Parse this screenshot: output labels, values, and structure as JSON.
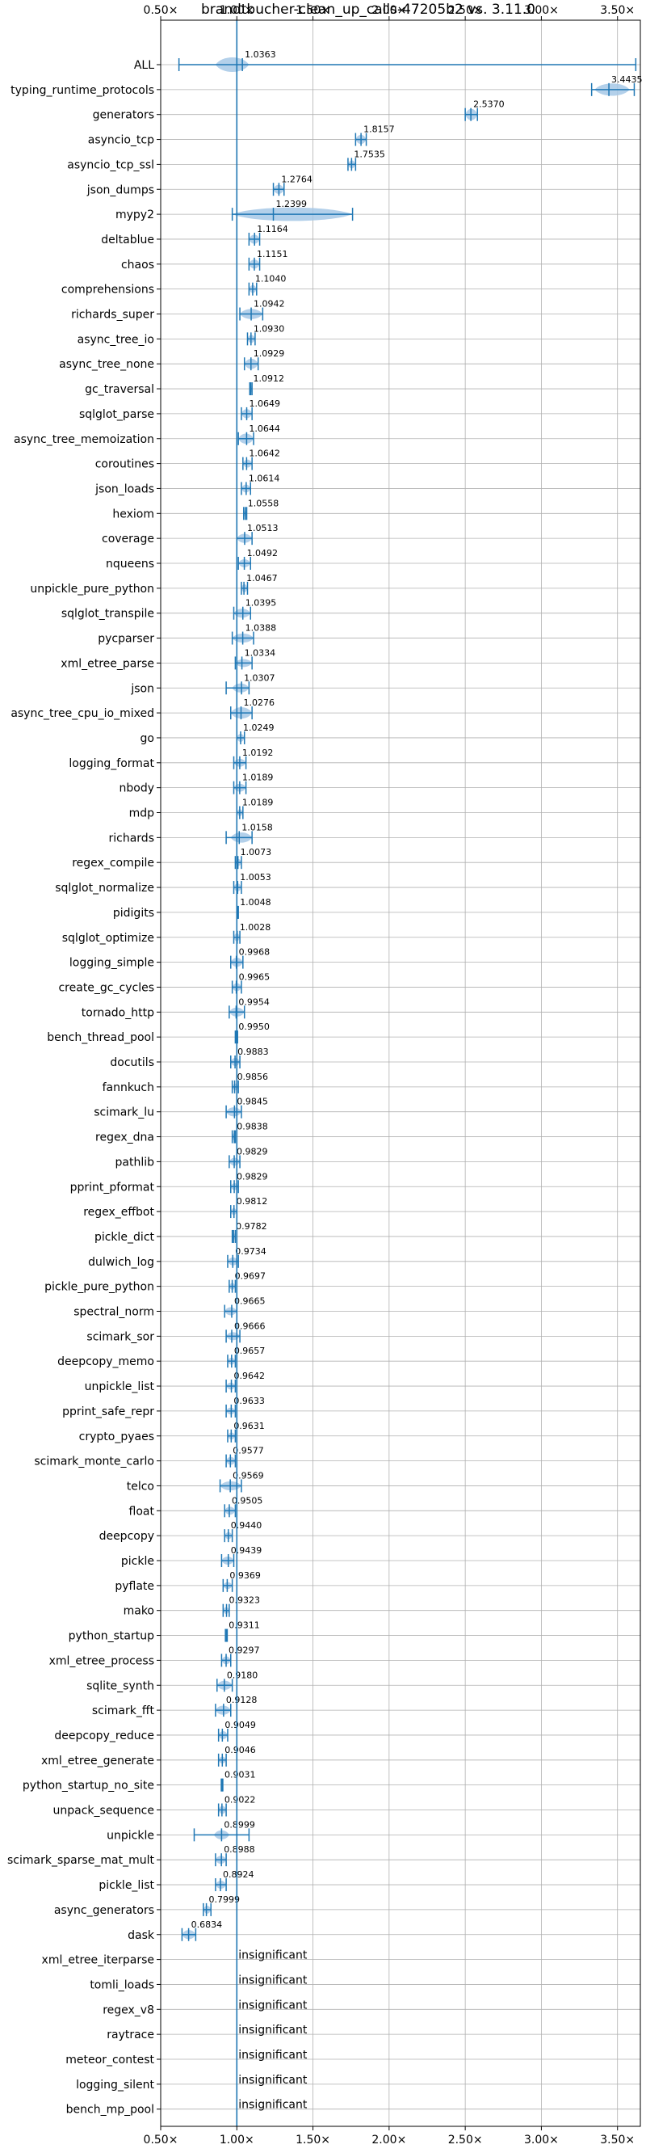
{
  "chart_data": {
    "type": "violin",
    "title": "brandtbucher-clean_up_calls-47205b2 vs. 3.11.0",
    "orientation": "horizontal",
    "xlim": [
      0.5,
      3.65
    ],
    "xticks": [
      0.5,
      1.0,
      1.5,
      2.0,
      2.5,
      3.0,
      3.5
    ],
    "xtick_labels": [
      "0.50×",
      "1.00×",
      "1.50×",
      "2.00×",
      "2.50×",
      "3.00×",
      "3.50×"
    ],
    "ticks_top_and_bottom": true,
    "reference_line": 1.0,
    "grid": true,
    "colors": {
      "violin": "#1f77b4",
      "violin_fill": "#a6c8e6",
      "grid": "#b0b0b0"
    },
    "benchmarks": [
      {
        "name": "ALL",
        "mean": 1.0363,
        "label": "1.0363",
        "min": 0.62,
        "max": 3.62,
        "body_low": 0.86,
        "body_high": 1.08,
        "width": 1.0
      },
      {
        "name": "typing_runtime_protocols",
        "mean": 3.4435,
        "label": "3.4435",
        "min": 3.33,
        "max": 3.61,
        "body_low": 3.35,
        "body_high": 3.58,
        "width": 0.8
      },
      {
        "name": "generators",
        "mean": 2.537,
        "label": "2.5370",
        "min": 2.5,
        "max": 2.58,
        "body_low": 2.5,
        "body_high": 2.58,
        "width": 0.7
      },
      {
        "name": "asyncio_tcp",
        "mean": 1.8157,
        "label": "1.8157",
        "min": 1.78,
        "max": 1.85,
        "body_low": 1.78,
        "body_high": 1.85,
        "width": 0.5
      },
      {
        "name": "asyncio_tcp_ssl",
        "mean": 1.7535,
        "label": "1.7535",
        "min": 1.73,
        "max": 1.78,
        "body_low": 1.73,
        "body_high": 1.78,
        "width": 0.4
      },
      {
        "name": "json_dumps",
        "mean": 1.2764,
        "label": "1.2764",
        "min": 1.24,
        "max": 1.31,
        "body_low": 1.24,
        "body_high": 1.31,
        "width": 0.5
      },
      {
        "name": "mypy2",
        "mean": 1.2399,
        "label": "1.2399",
        "min": 0.97,
        "max": 1.76,
        "body_low": 0.97,
        "body_high": 1.76,
        "width": 0.9
      },
      {
        "name": "deltablue",
        "mean": 1.1164,
        "label": "1.1164",
        "min": 1.08,
        "max": 1.15,
        "body_low": 1.08,
        "body_high": 1.15,
        "width": 0.5
      },
      {
        "name": "chaos",
        "mean": 1.1151,
        "label": "1.1151",
        "min": 1.08,
        "max": 1.15,
        "body_low": 1.08,
        "body_high": 1.15,
        "width": 0.5
      },
      {
        "name": "comprehensions",
        "mean": 1.104,
        "label": "1.1040",
        "min": 1.08,
        "max": 1.13,
        "body_low": 1.08,
        "body_high": 1.13,
        "width": 0.4
      },
      {
        "name": "richards_super",
        "mean": 1.0942,
        "label": "1.0942",
        "min": 1.02,
        "max": 1.17,
        "body_low": 1.02,
        "body_high": 1.17,
        "width": 0.6
      },
      {
        "name": "async_tree_io",
        "mean": 1.093,
        "label": "1.0930",
        "min": 1.07,
        "max": 1.12,
        "body_low": 1.07,
        "body_high": 1.12,
        "width": 0.4
      },
      {
        "name": "async_tree_none",
        "mean": 1.0929,
        "label": "1.0929",
        "min": 1.05,
        "max": 1.14,
        "body_low": 1.05,
        "body_high": 1.14,
        "width": 0.6
      },
      {
        "name": "gc_traversal",
        "mean": 1.0912,
        "label": "1.0912",
        "min": 1.085,
        "max": 1.1,
        "body_low": 1.085,
        "body_high": 1.1,
        "width": 0.3
      },
      {
        "name": "sqlglot_parse",
        "mean": 1.0649,
        "label": "1.0649",
        "min": 1.03,
        "max": 1.1,
        "body_low": 1.03,
        "body_high": 1.1,
        "width": 0.5
      },
      {
        "name": "async_tree_memoization",
        "mean": 1.0644,
        "label": "1.0644",
        "min": 1.01,
        "max": 1.11,
        "body_low": 1.01,
        "body_high": 1.11,
        "width": 0.6
      },
      {
        "name": "coroutines",
        "mean": 1.0642,
        "label": "1.0642",
        "min": 1.04,
        "max": 1.1,
        "body_low": 1.04,
        "body_high": 1.1,
        "width": 0.4
      },
      {
        "name": "json_loads",
        "mean": 1.0614,
        "label": "1.0614",
        "min": 1.03,
        "max": 1.09,
        "body_low": 1.03,
        "body_high": 1.09,
        "width": 0.4
      },
      {
        "name": "hexiom",
        "mean": 1.0558,
        "label": "1.0558",
        "min": 1.045,
        "max": 1.065,
        "body_low": 1.045,
        "body_high": 1.065,
        "width": 0.3
      },
      {
        "name": "coverage",
        "mean": 1.0513,
        "label": "1.0513",
        "min": 1.0,
        "max": 1.1,
        "body_low": 1.0,
        "body_high": 1.1,
        "width": 0.5
      },
      {
        "name": "nqueens",
        "mean": 1.0492,
        "label": "1.0492",
        "min": 1.01,
        "max": 1.09,
        "body_low": 1.01,
        "body_high": 1.09,
        "width": 0.4
      },
      {
        "name": "unpickle_pure_python",
        "mean": 1.0467,
        "label": "1.0467",
        "min": 1.03,
        "max": 1.07,
        "body_low": 1.03,
        "body_high": 1.07,
        "width": 0.4
      },
      {
        "name": "sqlglot_transpile",
        "mean": 1.0395,
        "label": "1.0395",
        "min": 0.98,
        "max": 1.09,
        "body_low": 0.98,
        "body_high": 1.09,
        "width": 0.5
      },
      {
        "name": "pycparser",
        "mean": 1.0388,
        "label": "1.0388",
        "min": 0.97,
        "max": 1.11,
        "body_low": 0.97,
        "body_high": 1.11,
        "width": 0.5
      },
      {
        "name": "xml_etree_parse",
        "mean": 1.0334,
        "label": "1.0334",
        "min": 0.99,
        "max": 1.1,
        "body_low": 0.99,
        "body_high": 1.1,
        "width": 0.4
      },
      {
        "name": "json",
        "mean": 1.0307,
        "label": "1.0307",
        "min": 0.93,
        "max": 1.08,
        "body_low": 0.97,
        "body_high": 1.08,
        "width": 0.5
      },
      {
        "name": "async_tree_cpu_io_mixed",
        "mean": 1.0276,
        "label": "1.0276",
        "min": 0.96,
        "max": 1.1,
        "body_low": 0.96,
        "body_high": 1.1,
        "width": 0.7
      },
      {
        "name": "go",
        "mean": 1.0249,
        "label": "1.0249",
        "min": 1.0,
        "max": 1.05,
        "body_low": 1.0,
        "body_high": 1.05,
        "width": 0.4
      },
      {
        "name": "logging_format",
        "mean": 1.0192,
        "label": "1.0192",
        "min": 0.98,
        "max": 1.06,
        "body_low": 0.98,
        "body_high": 1.06,
        "width": 0.4
      },
      {
        "name": "nbody",
        "mean": 1.0189,
        "label": "1.0189",
        "min": 0.98,
        "max": 1.06,
        "body_low": 0.98,
        "body_high": 1.06,
        "width": 0.4
      },
      {
        "name": "mdp",
        "mean": 1.0189,
        "label": "1.0189",
        "min": 1.0,
        "max": 1.04,
        "body_low": 1.0,
        "body_high": 1.04,
        "width": 0.3
      },
      {
        "name": "richards",
        "mean": 1.0158,
        "label": "1.0158",
        "min": 0.93,
        "max": 1.1,
        "body_low": 0.96,
        "body_high": 1.1,
        "width": 0.6
      },
      {
        "name": "regex_compile",
        "mean": 1.0073,
        "label": "1.0073",
        "min": 0.99,
        "max": 1.03,
        "body_low": 0.99,
        "body_high": 1.03,
        "width": 0.3
      },
      {
        "name": "sqlglot_normalize",
        "mean": 1.0053,
        "label": "1.0053",
        "min": 0.98,
        "max": 1.03,
        "body_low": 0.98,
        "body_high": 1.03,
        "width": 0.4
      },
      {
        "name": "pidigits",
        "mean": 1.0048,
        "label": "1.0048",
        "min": 1.0,
        "max": 1.01,
        "body_low": 1.0,
        "body_high": 1.01,
        "width": 0.2
      },
      {
        "name": "sqlglot_optimize",
        "mean": 1.0028,
        "label": "1.0028",
        "min": 0.98,
        "max": 1.02,
        "body_low": 0.98,
        "body_high": 1.02,
        "width": 0.4
      },
      {
        "name": "logging_simple",
        "mean": 0.9968,
        "label": "0.9968",
        "min": 0.96,
        "max": 1.04,
        "body_low": 0.96,
        "body_high": 1.04,
        "width": 0.5
      },
      {
        "name": "create_gc_cycles",
        "mean": 0.9965,
        "label": "0.9965",
        "min": 0.97,
        "max": 1.03,
        "body_low": 0.97,
        "body_high": 1.03,
        "width": 0.4
      },
      {
        "name": "tornado_http",
        "mean": 0.9954,
        "label": "0.9954",
        "min": 0.95,
        "max": 1.05,
        "body_low": 0.95,
        "body_high": 1.05,
        "width": 0.5
      },
      {
        "name": "bench_thread_pool",
        "mean": 0.995,
        "label": "0.9950",
        "min": 0.99,
        "max": 1.005,
        "body_low": 0.99,
        "body_high": 1.005,
        "width": 0.2
      },
      {
        "name": "docutils",
        "mean": 0.9883,
        "label": "0.9883",
        "min": 0.96,
        "max": 1.02,
        "body_low": 0.96,
        "body_high": 1.02,
        "width": 0.4
      },
      {
        "name": "fannkuch",
        "mean": 0.9856,
        "label": "0.9856",
        "min": 0.97,
        "max": 1.01,
        "body_low": 0.97,
        "body_high": 1.01,
        "width": 0.3
      },
      {
        "name": "scimark_lu",
        "mean": 0.9845,
        "label": "0.9845",
        "min": 0.93,
        "max": 1.03,
        "body_low": 0.93,
        "body_high": 1.03,
        "width": 0.5
      },
      {
        "name": "regex_dna",
        "mean": 0.9838,
        "label": "0.9838",
        "min": 0.97,
        "max": 0.99,
        "body_low": 0.97,
        "body_high": 0.99,
        "width": 0.3
      },
      {
        "name": "pathlib",
        "mean": 0.9829,
        "label": "0.9829",
        "min": 0.95,
        "max": 1.02,
        "body_low": 0.95,
        "body_high": 1.02,
        "width": 0.4
      },
      {
        "name": "pprint_pformat",
        "mean": 0.9829,
        "label": "0.9829",
        "min": 0.96,
        "max": 1.01,
        "body_low": 0.96,
        "body_high": 1.01,
        "width": 0.3
      },
      {
        "name": "regex_effbot",
        "mean": 0.9812,
        "label": "0.9812",
        "min": 0.96,
        "max": 1.0,
        "body_low": 0.96,
        "body_high": 1.0,
        "width": 0.3
      },
      {
        "name": "pickle_dict",
        "mean": 0.9782,
        "label": "0.9782",
        "min": 0.97,
        "max": 0.99,
        "body_low": 0.97,
        "body_high": 0.99,
        "width": 0.3
      },
      {
        "name": "dulwich_log",
        "mean": 0.9734,
        "label": "0.9734",
        "min": 0.94,
        "max": 1.01,
        "body_low": 0.94,
        "body_high": 1.01,
        "width": 0.4
      },
      {
        "name": "pickle_pure_python",
        "mean": 0.9697,
        "label": "0.9697",
        "min": 0.95,
        "max": 0.99,
        "body_low": 0.95,
        "body_high": 0.99,
        "width": 0.3
      },
      {
        "name": "spectral_norm",
        "mean": 0.9665,
        "label": "0.9665",
        "min": 0.92,
        "max": 1.0,
        "body_low": 0.92,
        "body_high": 1.0,
        "width": 0.4
      },
      {
        "name": "scimark_sor",
        "mean": 0.9666,
        "label": "0.9666",
        "min": 0.93,
        "max": 1.02,
        "body_low": 0.93,
        "body_high": 1.02,
        "width": 0.4
      },
      {
        "name": "deepcopy_memo",
        "mean": 0.9657,
        "label": "0.9657",
        "min": 0.94,
        "max": 0.99,
        "body_low": 0.94,
        "body_high": 0.99,
        "width": 0.3
      },
      {
        "name": "unpickle_list",
        "mean": 0.9642,
        "label": "0.9642",
        "min": 0.93,
        "max": 0.99,
        "body_low": 0.93,
        "body_high": 0.99,
        "width": 0.3
      },
      {
        "name": "pprint_safe_repr",
        "mean": 0.9633,
        "label": "0.9633",
        "min": 0.93,
        "max": 0.99,
        "body_low": 0.93,
        "body_high": 0.99,
        "width": 0.3
      },
      {
        "name": "crypto_pyaes",
        "mean": 0.9631,
        "label": "0.9631",
        "min": 0.94,
        "max": 0.99,
        "body_low": 0.94,
        "body_high": 0.99,
        "width": 0.3
      },
      {
        "name": "scimark_monte_carlo",
        "mean": 0.9577,
        "label": "0.9577",
        "min": 0.93,
        "max": 0.99,
        "body_low": 0.93,
        "body_high": 0.99,
        "width": 0.4
      },
      {
        "name": "telco",
        "mean": 0.9569,
        "label": "0.9569",
        "min": 0.89,
        "max": 1.03,
        "body_low": 0.89,
        "body_high": 1.03,
        "width": 0.5
      },
      {
        "name": "float",
        "mean": 0.9505,
        "label": "0.9505",
        "min": 0.92,
        "max": 0.99,
        "body_low": 0.92,
        "body_high": 0.99,
        "width": 0.4
      },
      {
        "name": "deepcopy",
        "mean": 0.944,
        "label": "0.9440",
        "min": 0.92,
        "max": 0.97,
        "body_low": 0.92,
        "body_high": 0.97,
        "width": 0.3
      },
      {
        "name": "pickle",
        "mean": 0.9439,
        "label": "0.9439",
        "min": 0.9,
        "max": 0.98,
        "body_low": 0.9,
        "body_high": 0.98,
        "width": 0.4
      },
      {
        "name": "pyflate",
        "mean": 0.9369,
        "label": "0.9369",
        "min": 0.91,
        "max": 0.97,
        "body_low": 0.91,
        "body_high": 0.97,
        "width": 0.3
      },
      {
        "name": "mako",
        "mean": 0.9323,
        "label": "0.9323",
        "min": 0.91,
        "max": 0.95,
        "body_low": 0.91,
        "body_high": 0.95,
        "width": 0.3
      },
      {
        "name": "python_startup",
        "mean": 0.9311,
        "label": "0.9311",
        "min": 0.925,
        "max": 0.937,
        "body_low": 0.925,
        "body_high": 0.937,
        "width": 0.2
      },
      {
        "name": "xml_etree_process",
        "mean": 0.9297,
        "label": "0.9297",
        "min": 0.9,
        "max": 0.96,
        "body_low": 0.9,
        "body_high": 0.96,
        "width": 0.4
      },
      {
        "name": "sqlite_synth",
        "mean": 0.918,
        "label": "0.9180",
        "min": 0.87,
        "max": 0.97,
        "body_low": 0.87,
        "body_high": 0.97,
        "width": 0.5
      },
      {
        "name": "scimark_fft",
        "mean": 0.9128,
        "label": "0.9128",
        "min": 0.86,
        "max": 0.96,
        "body_low": 0.86,
        "body_high": 0.96,
        "width": 0.5
      },
      {
        "name": "deepcopy_reduce",
        "mean": 0.9049,
        "label": "0.9049",
        "min": 0.88,
        "max": 0.94,
        "body_low": 0.88,
        "body_high": 0.94,
        "width": 0.4
      },
      {
        "name": "xml_etree_generate",
        "mean": 0.9046,
        "label": "0.9046",
        "min": 0.88,
        "max": 0.93,
        "body_low": 0.88,
        "body_high": 0.93,
        "width": 0.3
      },
      {
        "name": "python_startup_no_site",
        "mean": 0.9031,
        "label": "0.9031",
        "min": 0.898,
        "max": 0.908,
        "body_low": 0.898,
        "body_high": 0.908,
        "width": 0.2
      },
      {
        "name": "unpack_sequence",
        "mean": 0.9022,
        "label": "0.9022",
        "min": 0.88,
        "max": 0.93,
        "body_low": 0.88,
        "body_high": 0.93,
        "width": 0.4
      },
      {
        "name": "unpickle",
        "mean": 0.8999,
        "label": "0.8999",
        "min": 0.72,
        "max": 1.08,
        "body_low": 0.85,
        "body_high": 0.95,
        "width": 0.5
      },
      {
        "name": "scimark_sparse_mat_mult",
        "mean": 0.8988,
        "label": "0.8988",
        "min": 0.86,
        "max": 0.93,
        "body_low": 0.86,
        "body_high": 0.93,
        "width": 0.4
      },
      {
        "name": "pickle_list",
        "mean": 0.8924,
        "label": "0.8924",
        "min": 0.86,
        "max": 0.93,
        "body_low": 0.86,
        "body_high": 0.93,
        "width": 0.4
      },
      {
        "name": "async_generators",
        "mean": 0.7999,
        "label": "0.7999",
        "min": 0.78,
        "max": 0.83,
        "body_low": 0.78,
        "body_high": 0.83,
        "width": 0.4
      },
      {
        "name": "dask",
        "mean": 0.6834,
        "label": "0.6834",
        "min": 0.64,
        "max": 0.73,
        "body_low": 0.64,
        "body_high": 0.73,
        "width": 0.5
      },
      {
        "name": "xml_etree_iterparse",
        "insignificant": true,
        "label": "insignificant"
      },
      {
        "name": "tomli_loads",
        "insignificant": true,
        "label": "insignificant"
      },
      {
        "name": "regex_v8",
        "insignificant": true,
        "label": "insignificant"
      },
      {
        "name": "raytrace",
        "insignificant": true,
        "label": "insignificant"
      },
      {
        "name": "meteor_contest",
        "insignificant": true,
        "label": "insignificant"
      },
      {
        "name": "logging_silent",
        "insignificant": true,
        "label": "insignificant"
      },
      {
        "name": "bench_mp_pool",
        "insignificant": true,
        "label": "insignificant"
      }
    ]
  }
}
